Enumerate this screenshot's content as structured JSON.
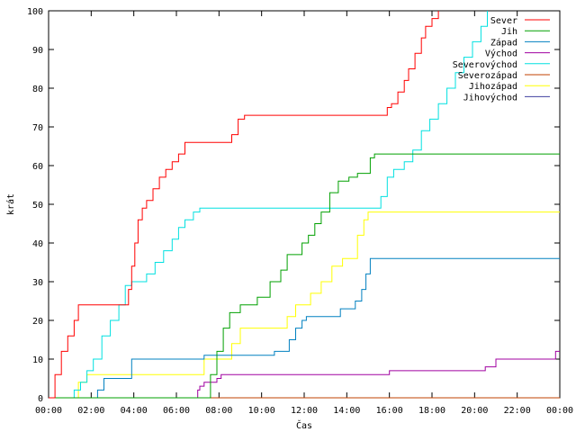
{
  "chart_data": {
    "type": "line",
    "step": true,
    "xlabel": "Čas",
    "ylabel": "krát",
    "xlim": [
      0,
      24
    ],
    "ylim": [
      0,
      100
    ],
    "grid": false,
    "legend_placement": "top-right",
    "x_ticks": [
      {
        "value": 0,
        "label": "00:00"
      },
      {
        "value": 2,
        "label": "02:00"
      },
      {
        "value": 4,
        "label": "04:00"
      },
      {
        "value": 6,
        "label": "06:00"
      },
      {
        "value": 8,
        "label": "08:00"
      },
      {
        "value": 10,
        "label": "10:00"
      },
      {
        "value": 12,
        "label": "12:00"
      },
      {
        "value": 14,
        "label": "14:00"
      },
      {
        "value": 16,
        "label": "16:00"
      },
      {
        "value": 18,
        "label": "18:00"
      },
      {
        "value": 20,
        "label": "20:00"
      },
      {
        "value": 22,
        "label": "22:00"
      },
      {
        "value": 24,
        "label": "00:00"
      }
    ],
    "y_ticks": [
      0,
      10,
      20,
      30,
      40,
      50,
      60,
      70,
      80,
      90,
      100
    ],
    "series": [
      {
        "name": "Sever",
        "color": "#ff0000",
        "x": [
          0.0,
          0.3,
          0.6,
          0.9,
          1.2,
          1.4,
          3.6,
          3.75,
          3.9,
          4.05,
          4.2,
          4.4,
          4.6,
          4.9,
          5.2,
          5.5,
          5.8,
          6.1,
          6.4,
          6.8,
          8.6,
          8.9,
          9.2,
          15.5,
          15.9,
          16.1,
          16.4,
          16.7,
          16.9,
          17.2,
          17.5,
          17.7,
          18.0,
          18.3
        ],
        "y": [
          0,
          6,
          12,
          16,
          20,
          24,
          24,
          28,
          34,
          40,
          46,
          49,
          51,
          54,
          57,
          59,
          61,
          63,
          66,
          66,
          68,
          72,
          73,
          73,
          75,
          76,
          79,
          82,
          85,
          89,
          93,
          96,
          98,
          100
        ]
      },
      {
        "name": "Jih",
        "color": "#00a000",
        "x": [
          0.0,
          7.4,
          7.6,
          7.9,
          8.2,
          8.5,
          9.0,
          9.3,
          9.8,
          10.4,
          10.9,
          11.2,
          11.6,
          11.9,
          12.2,
          12.5,
          12.8,
          13.2,
          13.6,
          14.1,
          14.5,
          15.1,
          15.3,
          24.0
        ],
        "y": [
          0,
          0,
          6,
          12,
          18,
          22,
          24,
          24,
          26,
          30,
          33,
          37,
          37,
          40,
          42,
          45,
          48,
          53,
          56,
          57,
          58,
          62,
          63,
          63
        ]
      },
      {
        "name": "Západ",
        "color": "#0080c0",
        "x": [
          0.0,
          2.3,
          2.6,
          3.5,
          3.9,
          6.5,
          7.3,
          9.4,
          10.6,
          11.3,
          11.6,
          11.9,
          12.1,
          12.3,
          12.6,
          13.1,
          13.7,
          14.4,
          14.7,
          14.9,
          15.1,
          24.0
        ],
        "y": [
          0,
          2,
          5,
          5,
          10,
          10,
          11,
          11,
          12,
          15,
          18,
          20,
          21,
          21,
          21,
          21,
          23,
          25,
          28,
          32,
          36,
          36
        ]
      },
      {
        "name": "Východ",
        "color": "#a000a0",
        "x": [
          0.0,
          6.85,
          7.0,
          7.1,
          7.3,
          7.6,
          7.9,
          8.1,
          15.5,
          16.0,
          20.5,
          21.0,
          23.6,
          23.8,
          24.0
        ],
        "y": [
          0,
          0,
          2,
          3,
          4,
          4,
          5,
          6,
          6,
          7,
          8,
          10,
          10,
          12,
          12
        ]
      },
      {
        "name": "Severovýchod",
        "color": "#00e0e0",
        "x": [
          0.0,
          0.9,
          1.2,
          1.5,
          1.8,
          2.1,
          2.5,
          2.9,
          3.3,
          3.6,
          3.9,
          4.2,
          4.6,
          5.0,
          5.4,
          5.8,
          6.1,
          6.4,
          6.8,
          7.1,
          7.4,
          14.5,
          15.1,
          15.6,
          15.9,
          16.2,
          16.7,
          17.1,
          17.5,
          17.9,
          18.3,
          18.7,
          19.1,
          19.5,
          19.9,
          20.3,
          20.6
        ],
        "y": [
          0,
          0,
          2,
          4,
          7,
          10,
          16,
          20,
          24,
          29,
          30,
          30,
          32,
          35,
          38,
          41,
          44,
          46,
          48,
          49,
          49,
          49,
          49,
          52,
          57,
          59,
          61,
          64,
          69,
          72,
          76,
          80,
          84,
          88,
          92,
          96,
          100
        ]
      },
      {
        "name": "Severozápad",
        "color": "#c04000",
        "x": [
          0.0,
          24.0
        ],
        "y": [
          0,
          0
        ]
      },
      {
        "name": "Jihozápad",
        "color": "#ffff00",
        "x": [
          0.0,
          1.2,
          1.4,
          1.8,
          6.8,
          7.3,
          8.6,
          9.0,
          10.4,
          11.2,
          11.6,
          12.3,
          12.8,
          13.3,
          13.8,
          14.1,
          14.5,
          14.8,
          15.0,
          24.0
        ],
        "y": [
          0,
          0,
          4,
          6,
          6,
          10,
          14,
          18,
          18,
          21,
          24,
          27,
          30,
          34,
          36,
          36,
          42,
          46,
          48,
          48
        ]
      },
      {
        "name": "Jihovýchod",
        "color": "#4040a0",
        "x": [
          0.0,
          24.0
        ],
        "y": [
          0,
          0
        ]
      }
    ]
  }
}
